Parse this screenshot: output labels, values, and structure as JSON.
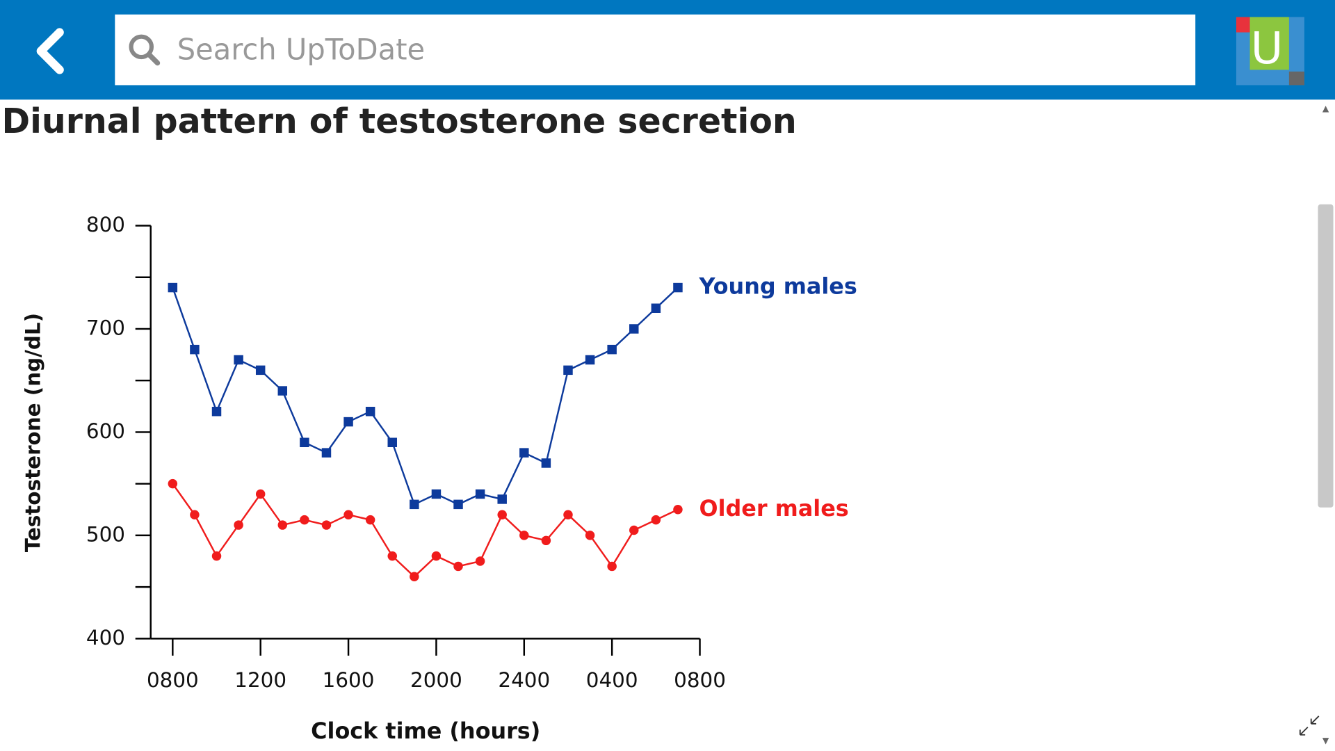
{
  "header": {
    "search_placeholder": "Search UpToDate"
  },
  "chart_data": {
    "type": "line",
    "title": "Diurnal pattern of testosterone secretion",
    "x_label": "Clock time (hours)",
    "y_label": "Testosterone (ng/dL)",
    "x": [
      8,
      9,
      10,
      11,
      12,
      13,
      14,
      15,
      16,
      17,
      18,
      19,
      20,
      21,
      22,
      23,
      24,
      25,
      26,
      27,
      28,
      29,
      30,
      31
    ],
    "series": [
      {
        "name": "Young males",
        "color": "#0d3a9c",
        "marker": "square",
        "values": [
          740,
          680,
          620,
          670,
          660,
          640,
          590,
          580,
          610,
          620,
          590,
          530,
          540,
          530,
          540,
          535,
          580,
          570,
          660,
          670,
          680,
          700,
          720,
          740
        ]
      },
      {
        "name": "Older males",
        "color": "#f01c1c",
        "marker": "circle",
        "values": [
          550,
          520,
          480,
          510,
          540,
          510,
          515,
          510,
          520,
          515,
          480,
          460,
          480,
          470,
          475,
          520,
          500,
          495,
          520,
          500,
          470,
          505,
          515,
          525
        ]
      }
    ],
    "xlim": [
      7,
      32
    ],
    "xticks": [
      {
        "value": 8,
        "label": "0800"
      },
      {
        "value": 12,
        "label": "1200"
      },
      {
        "value": 16,
        "label": "1600"
      },
      {
        "value": 20,
        "label": "2000"
      },
      {
        "value": 24,
        "label": "2400"
      },
      {
        "value": 28,
        "label": "0400"
      },
      {
        "value": 32,
        "label": "0800"
      }
    ],
    "ylim": [
      400,
      800
    ],
    "yticks": [
      400,
      500,
      600,
      700,
      800
    ],
    "yminorticks": [
      450,
      550,
      650,
      750
    ],
    "grid": false
  }
}
